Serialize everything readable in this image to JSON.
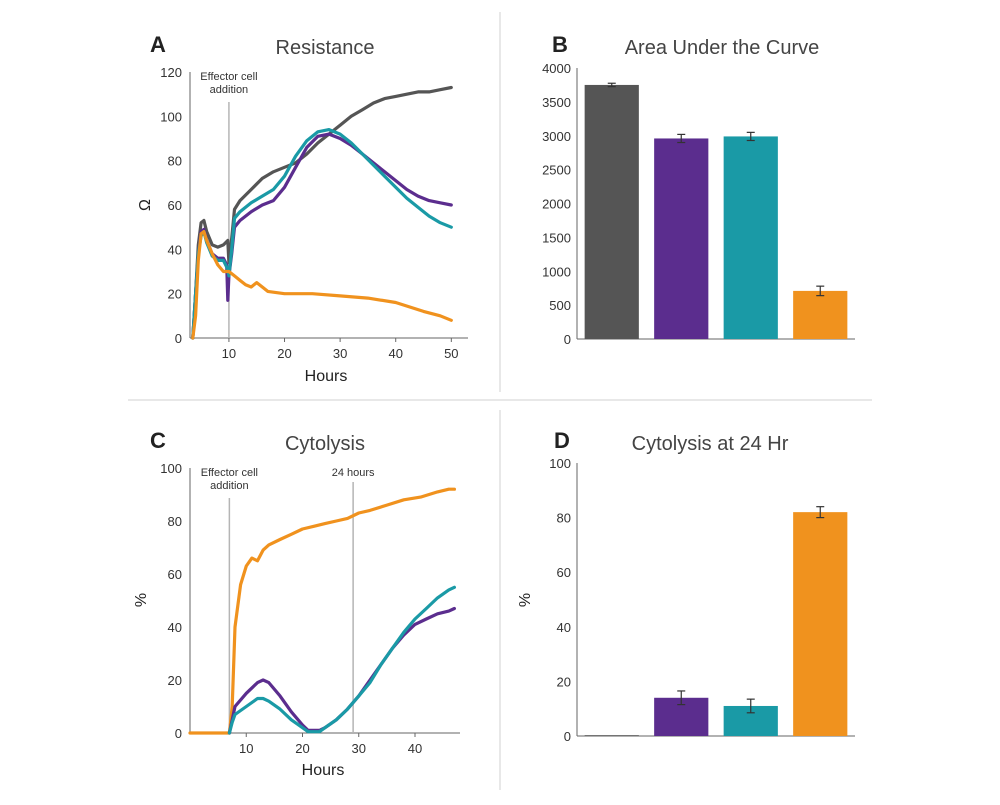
{
  "colors": {
    "gray": "#555555",
    "purple": "#5b2d8e",
    "teal": "#1a9aa6",
    "orange": "#f0921e",
    "axis": "#666666",
    "divider": "#e0e0e0",
    "vline": "#b5b5b5"
  },
  "chart_data": [
    {
      "id": "A",
      "letter": "A",
      "type": "line",
      "title": "Resistance",
      "xlabel": "Hours",
      "ylabel": "Ω",
      "xlim": [
        3,
        53
      ],
      "ylim": [
        0,
        120
      ],
      "xticks": [
        10,
        20,
        30,
        40,
        50
      ],
      "yticks": [
        0,
        20,
        40,
        60,
        80,
        100,
        120
      ],
      "annotations": [
        {
          "x": 10,
          "lines": [
            "Effector cell",
            "addition"
          ]
        }
      ],
      "series": [
        {
          "name": "gray",
          "color": "#555555",
          "points": [
            [
              3.5,
              0
            ],
            [
              4,
              20
            ],
            [
              4.5,
              42
            ],
            [
              5,
              52
            ],
            [
              5.5,
              53
            ],
            [
              6,
              48
            ],
            [
              7,
              42
            ],
            [
              8,
              41
            ],
            [
              9,
              42
            ],
            [
              9.8,
              44
            ],
            [
              10,
              34
            ],
            [
              10.5,
              45
            ],
            [
              11,
              58
            ],
            [
              12,
              62
            ],
            [
              14,
              67
            ],
            [
              16,
              72
            ],
            [
              18,
              75
            ],
            [
              20,
              77
            ],
            [
              22,
              79
            ],
            [
              24,
              83
            ],
            [
              26,
              88
            ],
            [
              28,
              92
            ],
            [
              30,
              96
            ],
            [
              32,
              100
            ],
            [
              34,
              103
            ],
            [
              36,
              106
            ],
            [
              38,
              108
            ],
            [
              40,
              109
            ],
            [
              42,
              110
            ],
            [
              44,
              111
            ],
            [
              46,
              111
            ],
            [
              48,
              112
            ],
            [
              50,
              113
            ]
          ]
        },
        {
          "name": "purple",
          "color": "#5b2d8e",
          "points": [
            [
              3.5,
              0
            ],
            [
              4,
              20
            ],
            [
              4.5,
              38
            ],
            [
              5,
              48
            ],
            [
              5.5,
              49
            ],
            [
              6,
              44
            ],
            [
              7,
              38
            ],
            [
              8,
              36
            ],
            [
              9,
              36
            ],
            [
              9.6,
              33
            ],
            [
              9.8,
              17
            ],
            [
              10,
              28
            ],
            [
              10.5,
              38
            ],
            [
              11,
              50
            ],
            [
              12,
              53
            ],
            [
              14,
              57
            ],
            [
              16,
              60
            ],
            [
              18,
              62
            ],
            [
              20,
              68
            ],
            [
              22,
              77
            ],
            [
              24,
              86
            ],
            [
              26,
              91
            ],
            [
              28,
              92
            ],
            [
              30,
              90
            ],
            [
              32,
              87
            ],
            [
              34,
              83
            ],
            [
              36,
              79
            ],
            [
              38,
              75
            ],
            [
              40,
              71
            ],
            [
              42,
              67
            ],
            [
              44,
              64
            ],
            [
              46,
              62
            ],
            [
              48,
              61
            ],
            [
              50,
              60
            ]
          ]
        },
        {
          "name": "teal",
          "color": "#1a9aa6",
          "points": [
            [
              3.5,
              0
            ],
            [
              4,
              20
            ],
            [
              4.5,
              38
            ],
            [
              5,
              46
            ],
            [
              5.5,
              48
            ],
            [
              6,
              43
            ],
            [
              7,
              37
            ],
            [
              8,
              35
            ],
            [
              9,
              35
            ],
            [
              9.8,
              31
            ],
            [
              10,
              28
            ],
            [
              10.5,
              40
            ],
            [
              11,
              54
            ],
            [
              12,
              57
            ],
            [
              14,
              61
            ],
            [
              16,
              64
            ],
            [
              18,
              67
            ],
            [
              20,
              73
            ],
            [
              22,
              82
            ],
            [
              24,
              89
            ],
            [
              26,
              93
            ],
            [
              28,
              94
            ],
            [
              30,
              92
            ],
            [
              32,
              88
            ],
            [
              34,
              83
            ],
            [
              36,
              78
            ],
            [
              38,
              73
            ],
            [
              40,
              68
            ],
            [
              42,
              63
            ],
            [
              44,
              59
            ],
            [
              46,
              55
            ],
            [
              48,
              52
            ],
            [
              50,
              50
            ]
          ]
        },
        {
          "name": "orange",
          "color": "#f0921e",
          "points": [
            [
              3.5,
              0
            ],
            [
              4,
              10
            ],
            [
              4.5,
              35
            ],
            [
              5,
              47
            ],
            [
              5.5,
              48
            ],
            [
              6,
              44
            ],
            [
              7,
              38
            ],
            [
              8,
              33
            ],
            [
              9,
              30
            ],
            [
              10,
              30
            ],
            [
              11,
              28
            ],
            [
              12,
              26
            ],
            [
              13,
              24
            ],
            [
              14,
              23
            ],
            [
              15,
              25
            ],
            [
              16,
              23
            ],
            [
              17,
              21
            ],
            [
              20,
              20
            ],
            [
              25,
              20
            ],
            [
              30,
              19
            ],
            [
              35,
              18
            ],
            [
              40,
              16
            ],
            [
              45,
              12
            ],
            [
              48,
              10
            ],
            [
              50,
              8
            ]
          ]
        }
      ]
    },
    {
      "id": "B",
      "letter": "B",
      "type": "bar",
      "title": "Area Under the Curve",
      "ylim": [
        0,
        4000
      ],
      "yticks": [
        0,
        500,
        1000,
        1500,
        2000,
        2500,
        3000,
        3500,
        4000
      ],
      "bars": [
        {
          "value": 3750,
          "error": 25,
          "color": "#555555"
        },
        {
          "value": 2960,
          "error": 60,
          "color": "#5b2d8e"
        },
        {
          "value": 2990,
          "error": 60,
          "color": "#1a9aa6"
        },
        {
          "value": 710,
          "error": 70,
          "color": "#f0921e"
        }
      ]
    },
    {
      "id": "C",
      "letter": "C",
      "type": "line",
      "title": "Cytolysis",
      "xlabel": "Hours",
      "ylabel": "%",
      "xlim": [
        0,
        48
      ],
      "ylim": [
        0,
        100
      ],
      "xticks": [
        10,
        20,
        30,
        40
      ],
      "yticks": [
        0,
        20,
        40,
        60,
        80,
        100
      ],
      "annotations": [
        {
          "x": 7,
          "lines": [
            "Effector cell",
            "addition"
          ]
        },
        {
          "x": 29,
          "lines": [
            "24 hours"
          ]
        }
      ],
      "series": [
        {
          "name": "orange",
          "color": "#f0921e",
          "points": [
            [
              0,
              0
            ],
            [
              7,
              0
            ],
            [
              7.5,
              10
            ],
            [
              8,
              40
            ],
            [
              9,
              56
            ],
            [
              10,
              63
            ],
            [
              11,
              66
            ],
            [
              12,
              65
            ],
            [
              13,
              69
            ],
            [
              14,
              71
            ],
            [
              16,
              73
            ],
            [
              18,
              75
            ],
            [
              20,
              77
            ],
            [
              22,
              78
            ],
            [
              24,
              79
            ],
            [
              26,
              80
            ],
            [
              28,
              81
            ],
            [
              30,
              83
            ],
            [
              32,
              84
            ],
            [
              35,
              86
            ],
            [
              38,
              88
            ],
            [
              41,
              89
            ],
            [
              44,
              91
            ],
            [
              46,
              92
            ],
            [
              47,
              92
            ]
          ]
        },
        {
          "name": "purple",
          "color": "#5b2d8e",
          "points": [
            [
              7,
              0
            ],
            [
              7.5,
              5
            ],
            [
              8,
              10
            ],
            [
              10,
              15
            ],
            [
              12,
              19
            ],
            [
              13,
              20
            ],
            [
              14,
              19
            ],
            [
              16,
              14
            ],
            [
              18,
              8
            ],
            [
              20,
              3
            ],
            [
              21,
              1
            ],
            [
              23,
              1
            ],
            [
              24,
              2
            ],
            [
              26,
              5
            ],
            [
              28,
              9
            ],
            [
              30,
              14
            ],
            [
              32,
              20
            ],
            [
              34,
              26
            ],
            [
              36,
              32
            ],
            [
              38,
              37
            ],
            [
              40,
              41
            ],
            [
              42,
              43
            ],
            [
              44,
              45
            ],
            [
              46,
              46
            ],
            [
              47,
              47
            ]
          ]
        },
        {
          "name": "teal",
          "color": "#1a9aa6",
          "points": [
            [
              7,
              0
            ],
            [
              7.5,
              4
            ],
            [
              8,
              7
            ],
            [
              10,
              10
            ],
            [
              12,
              13
            ],
            [
              13,
              13
            ],
            [
              14,
              12
            ],
            [
              16,
              9
            ],
            [
              18,
              5
            ],
            [
              20,
              2
            ],
            [
              21,
              0.5
            ],
            [
              23,
              0.5
            ],
            [
              24,
              2
            ],
            [
              26,
              5
            ],
            [
              28,
              9
            ],
            [
              30,
              14
            ],
            [
              32,
              19
            ],
            [
              34,
              26
            ],
            [
              36,
              32
            ],
            [
              38,
              38
            ],
            [
              40,
              43
            ],
            [
              42,
              47
            ],
            [
              44,
              51
            ],
            [
              46,
              54
            ],
            [
              47,
              55
            ]
          ]
        }
      ]
    },
    {
      "id": "D",
      "letter": "D",
      "type": "bar",
      "title": "Cytolysis at 24 Hr",
      "ylabel": "%",
      "ylim": [
        0,
        100
      ],
      "yticks": [
        0,
        20,
        40,
        60,
        80,
        100
      ],
      "bars": [
        {
          "value": 0.3,
          "error": 0,
          "color": "#555555"
        },
        {
          "value": 14,
          "error": 2.5,
          "color": "#5b2d8e"
        },
        {
          "value": 11,
          "error": 2.5,
          "color": "#1a9aa6"
        },
        {
          "value": 82,
          "error": 2,
          "color": "#f0921e"
        }
      ]
    }
  ]
}
